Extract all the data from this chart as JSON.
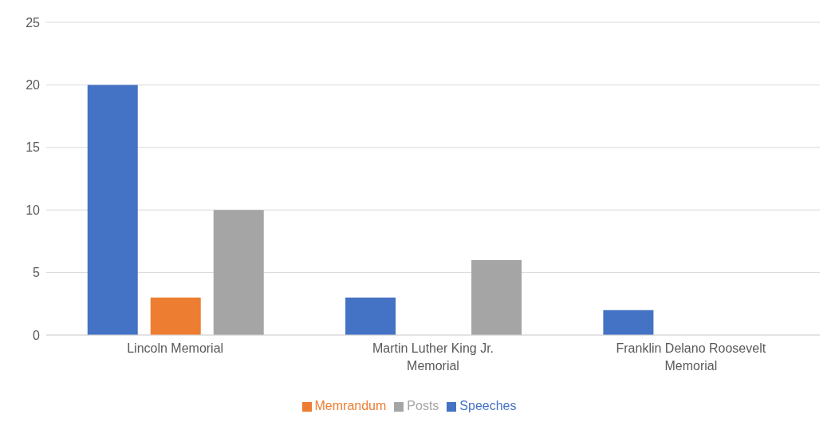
{
  "chart_data": {
    "type": "bar",
    "categories": [
      "Lincoln Memorial",
      "Martin Luther King Jr. Memorial",
      "Franklin Delano Roosevelt Memorial"
    ],
    "series": [
      {
        "name": "Speeches",
        "color": "#4472c4",
        "values": [
          20,
          3,
          2
        ]
      },
      {
        "name": "Memrandum",
        "color": "#ed7d31",
        "values": [
          3,
          0,
          0
        ]
      },
      {
        "name": "Posts",
        "color": "#a5a5a5",
        "values": [
          10,
          6,
          0
        ]
      }
    ],
    "ylim": [
      0,
      25
    ],
    "yticks": [
      0,
      5,
      10,
      15,
      20,
      25
    ],
    "grid": "y",
    "legend": "bottom"
  }
}
